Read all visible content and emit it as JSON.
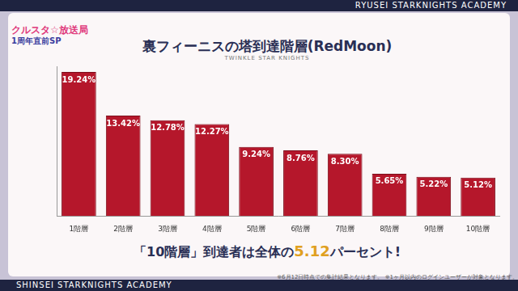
{
  "chart_data": {
    "type": "bar",
    "title": "裏フィーニスの塔到達階層(RedMoon)",
    "categories": [
      "1階層",
      "2階層",
      "3階層",
      "4階層",
      "5階層",
      "6階層",
      "7階層",
      "8階層",
      "9階層",
      "10階層"
    ],
    "values": [
      19.24,
      13.42,
      12.78,
      12.27,
      9.24,
      8.76,
      8.3,
      5.65,
      5.22,
      5.12
    ],
    "value_labels": [
      "19.24%",
      "13.42%",
      "12.78%",
      "12.27%",
      "9.24%",
      "8.76%",
      "8.30%",
      "5.65%",
      "5.22%",
      "5.12%"
    ],
    "data_labels": true,
    "color": "#b5172b",
    "ylim": [
      0,
      20
    ],
    "grid": false,
    "tick_labels": "x"
  },
  "header": {
    "logo": "クルスタ☆放送局",
    "logo_sub": "1周年直前SP",
    "banner": "RYUSEI STARKNIGHTS ACADEMY",
    "subtitle": "TWINKLE STAR KNIGHTS"
  },
  "footer": {
    "text_before": "「10階層」到達者は全体の",
    "highlight": "5.12",
    "text_after": "パーセント!",
    "note": "※6月12日時点での集計結果となります。 ※1ヶ月以内のログインユーザーが対象となります。",
    "banner": "SHINSEI STARKNIGHTS ACADEMY"
  }
}
